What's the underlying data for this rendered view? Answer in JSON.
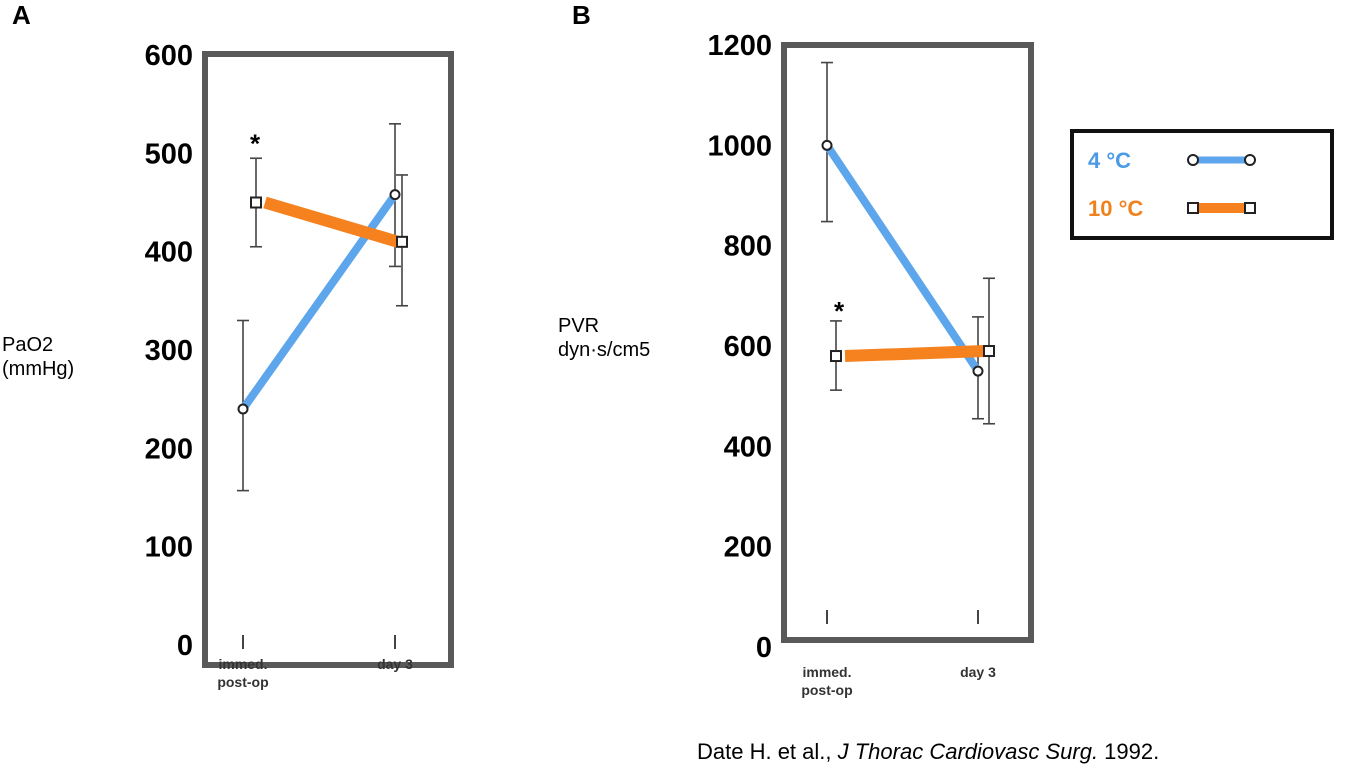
{
  "chart_data": [
    {
      "panel": "A",
      "type": "line",
      "ylabel": "PaO2\n(mmHg)",
      "ylim": [
        0,
        600
      ],
      "yticks": [
        "0",
        "100",
        "200",
        "300",
        "400",
        "500",
        "600"
      ],
      "categories": [
        "immed.\npost-op",
        "day 3"
      ],
      "series": [
        {
          "name": "4 °C",
          "values": [
            240,
            458
          ],
          "err_low": [
            157,
            385
          ],
          "err_high": [
            330,
            530
          ]
        },
        {
          "name": "10 °C",
          "values": [
            450,
            410
          ],
          "err_low": [
            405,
            345
          ],
          "err_high": [
            495,
            478
          ]
        }
      ],
      "annotations": [
        {
          "text": "*",
          "category": 0,
          "value": 515
        }
      ]
    },
    {
      "panel": "B",
      "type": "line",
      "ylabel": "PVR\ndyn·s/cm5",
      "ylim": [
        0,
        1200
      ],
      "yticks": [
        "0",
        "200",
        "400",
        "600",
        "800",
        "1000",
        "1200"
      ],
      "categories": [
        "immed.\npost-op",
        "day 3"
      ],
      "series": [
        {
          "name": "4 °C",
          "values": [
            1000,
            550
          ],
          "err_low": [
            848,
            455
          ],
          "err_high": [
            1165,
            658
          ]
        },
        {
          "name": "10 °C",
          "values": [
            580,
            590
          ],
          "err_low": [
            512,
            445
          ],
          "err_high": [
            650,
            735
          ]
        }
      ],
      "annotations": [
        {
          "text": "*",
          "category": 0,
          "value": 680
        }
      ]
    }
  ],
  "legend": {
    "items": [
      {
        "label": "4 °C",
        "color": "#5ea6ec",
        "marker": "circle"
      },
      {
        "label": "10 °C",
        "color": "#f5821f",
        "marker": "square"
      }
    ]
  },
  "citation": {
    "authors": "Date H. et al., ",
    "journal": "J Thorac Cardiovasc Surg.",
    "year": " 1992."
  },
  "colors": {
    "frame": "#595959",
    "blue": "#5ea6ec",
    "orange": "#f5821f",
    "blue_text": "#4a9ae6",
    "orange_text": "#f0821e"
  }
}
